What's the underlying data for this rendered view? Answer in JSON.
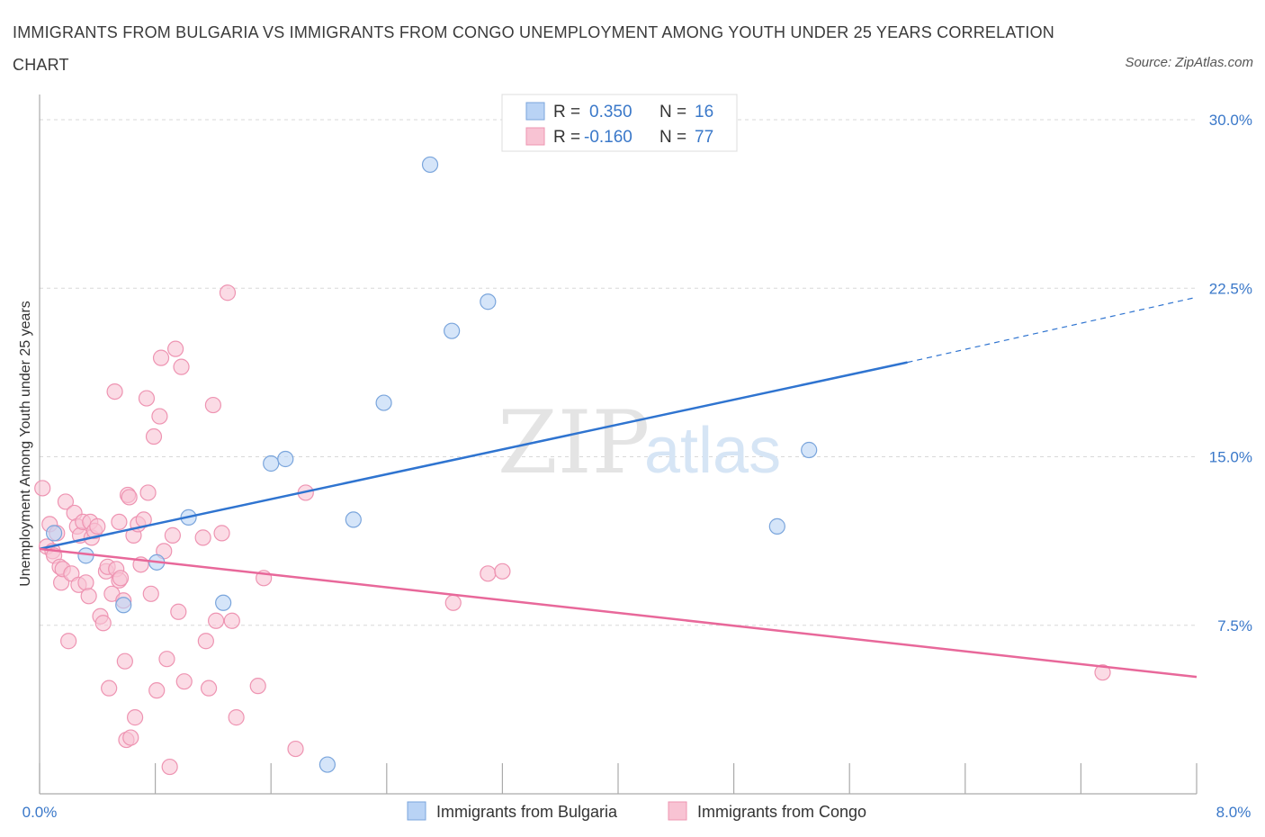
{
  "title": "IMMIGRANTS FROM BULGARIA VS IMMIGRANTS FROM CONGO UNEMPLOYMENT AMONG YOUTH UNDER 25 YEARS CORRELATION CHART",
  "source": "Source: ZipAtlas.com",
  "watermark": {
    "part1": "ZIP",
    "part2": "atlas"
  },
  "colors": {
    "bulgaria_fill": "#b9d3f5",
    "bulgaria_stroke": "#7aa5dc",
    "bulgaria_line": "#2f74d0",
    "congo_fill": "#f8c3d3",
    "congo_stroke": "#ee94b2",
    "congo_line": "#e8689a",
    "tick_label": "#3a78c9",
    "grid": "#d8d8d8"
  },
  "legend": {
    "rows": [
      {
        "r_label": "R =",
        "r_value": "0.350",
        "n_label": "N =",
        "n_value": "16"
      },
      {
        "r_label": "R =",
        "r_value": "-0.160",
        "n_label": "N =",
        "n_value": "77"
      }
    ]
  },
  "chart_data": {
    "type": "scatter",
    "title": "IMMIGRANTS FROM BULGARIA VS IMMIGRANTS FROM CONGO UNEMPLOYMENT AMONG YOUTH UNDER 25 YEARS CORRELATION CHART",
    "xlabel": "",
    "ylabel": "Unemployment Among Youth under 25 years",
    "xlim": [
      0,
      8
    ],
    "ylim": [
      0,
      30.5
    ],
    "x_tick_labels": [
      "0.0%",
      "8.0%"
    ],
    "y_ticks": [
      7.5,
      15.0,
      22.5,
      30.0
    ],
    "y_tick_labels": [
      "7.5%",
      "15.0%",
      "22.5%",
      "30.0%"
    ],
    "series": [
      {
        "name": "Immigrants from Bulgaria",
        "r": 0.35,
        "n": 16,
        "points": [
          [
            0.1,
            11.6
          ],
          [
            0.32,
            10.6
          ],
          [
            0.58,
            8.4
          ],
          [
            0.81,
            10.3
          ],
          [
            1.03,
            12.3
          ],
          [
            1.27,
            8.5
          ],
          [
            1.6,
            14.7
          ],
          [
            1.7,
            14.9
          ],
          [
            1.99,
            1.3
          ],
          [
            2.17,
            12.2
          ],
          [
            2.38,
            17.4
          ],
          [
            2.7,
            28.0
          ],
          [
            2.85,
            20.6
          ],
          [
            3.1,
            21.9
          ],
          [
            5.1,
            11.9
          ],
          [
            5.32,
            15.3
          ]
        ],
        "trend": {
          "x0": 0.0,
          "y0": 10.9,
          "x1": 6.0,
          "y1": 19.2,
          "dash_to_x": 8.0,
          "dash_to_y": 22.1
        }
      },
      {
        "name": "Immigrants from Congo",
        "r": -0.16,
        "n": 77,
        "points": [
          [
            0.02,
            13.6
          ],
          [
            0.05,
            11.0
          ],
          [
            0.07,
            12.0
          ],
          [
            0.09,
            10.8
          ],
          [
            0.1,
            10.6
          ],
          [
            0.12,
            11.6
          ],
          [
            0.14,
            10.1
          ],
          [
            0.15,
            9.4
          ],
          [
            0.16,
            10.0
          ],
          [
            0.18,
            13.0
          ],
          [
            0.2,
            6.8
          ],
          [
            0.22,
            9.8
          ],
          [
            0.24,
            12.5
          ],
          [
            0.26,
            11.9
          ],
          [
            0.27,
            9.3
          ],
          [
            0.28,
            11.5
          ],
          [
            0.3,
            12.1
          ],
          [
            0.32,
            9.4
          ],
          [
            0.34,
            8.8
          ],
          [
            0.35,
            12.1
          ],
          [
            0.36,
            11.4
          ],
          [
            0.38,
            11.7
          ],
          [
            0.4,
            11.9
          ],
          [
            0.42,
            7.9
          ],
          [
            0.44,
            7.6
          ],
          [
            0.46,
            9.9
          ],
          [
            0.47,
            10.1
          ],
          [
            0.48,
            4.7
          ],
          [
            0.5,
            8.9
          ],
          [
            0.52,
            17.9
          ],
          [
            0.53,
            10.0
          ],
          [
            0.55,
            9.5
          ],
          [
            0.56,
            9.6
          ],
          [
            0.58,
            8.6
          ],
          [
            0.59,
            5.9
          ],
          [
            0.6,
            2.4
          ],
          [
            0.61,
            13.3
          ],
          [
            0.62,
            13.2
          ],
          [
            0.65,
            11.5
          ],
          [
            0.66,
            3.4
          ],
          [
            0.68,
            12.0
          ],
          [
            0.7,
            10.2
          ],
          [
            0.72,
            12.2
          ],
          [
            0.74,
            17.6
          ],
          [
            0.75,
            13.4
          ],
          [
            0.77,
            8.9
          ],
          [
            0.79,
            15.9
          ],
          [
            0.81,
            4.6
          ],
          [
            0.83,
            16.8
          ],
          [
            0.84,
            19.4
          ],
          [
            0.86,
            10.8
          ],
          [
            0.88,
            6.0
          ],
          [
            0.9,
            1.2
          ],
          [
            0.92,
            11.5
          ],
          [
            0.94,
            19.8
          ],
          [
            0.96,
            8.1
          ],
          [
            0.98,
            19.0
          ],
          [
            1.0,
            5.0
          ],
          [
            1.13,
            11.4
          ],
          [
            1.15,
            6.8
          ],
          [
            1.17,
            4.7
          ],
          [
            1.2,
            17.3
          ],
          [
            1.22,
            7.7
          ],
          [
            1.26,
            11.6
          ],
          [
            1.3,
            22.3
          ],
          [
            1.33,
            7.7
          ],
          [
            1.36,
            3.4
          ],
          [
            1.51,
            4.8
          ],
          [
            1.55,
            9.6
          ],
          [
            1.77,
            2.0
          ],
          [
            1.84,
            13.4
          ],
          [
            2.86,
            8.5
          ],
          [
            3.1,
            9.8
          ],
          [
            3.2,
            9.9
          ],
          [
            7.35,
            5.4
          ],
          [
            0.63,
            2.5
          ],
          [
            0.55,
            12.1
          ]
        ],
        "trend": {
          "x0": 0.0,
          "y0": 10.9,
          "x1": 8.0,
          "y1": 5.2
        }
      }
    ]
  }
}
